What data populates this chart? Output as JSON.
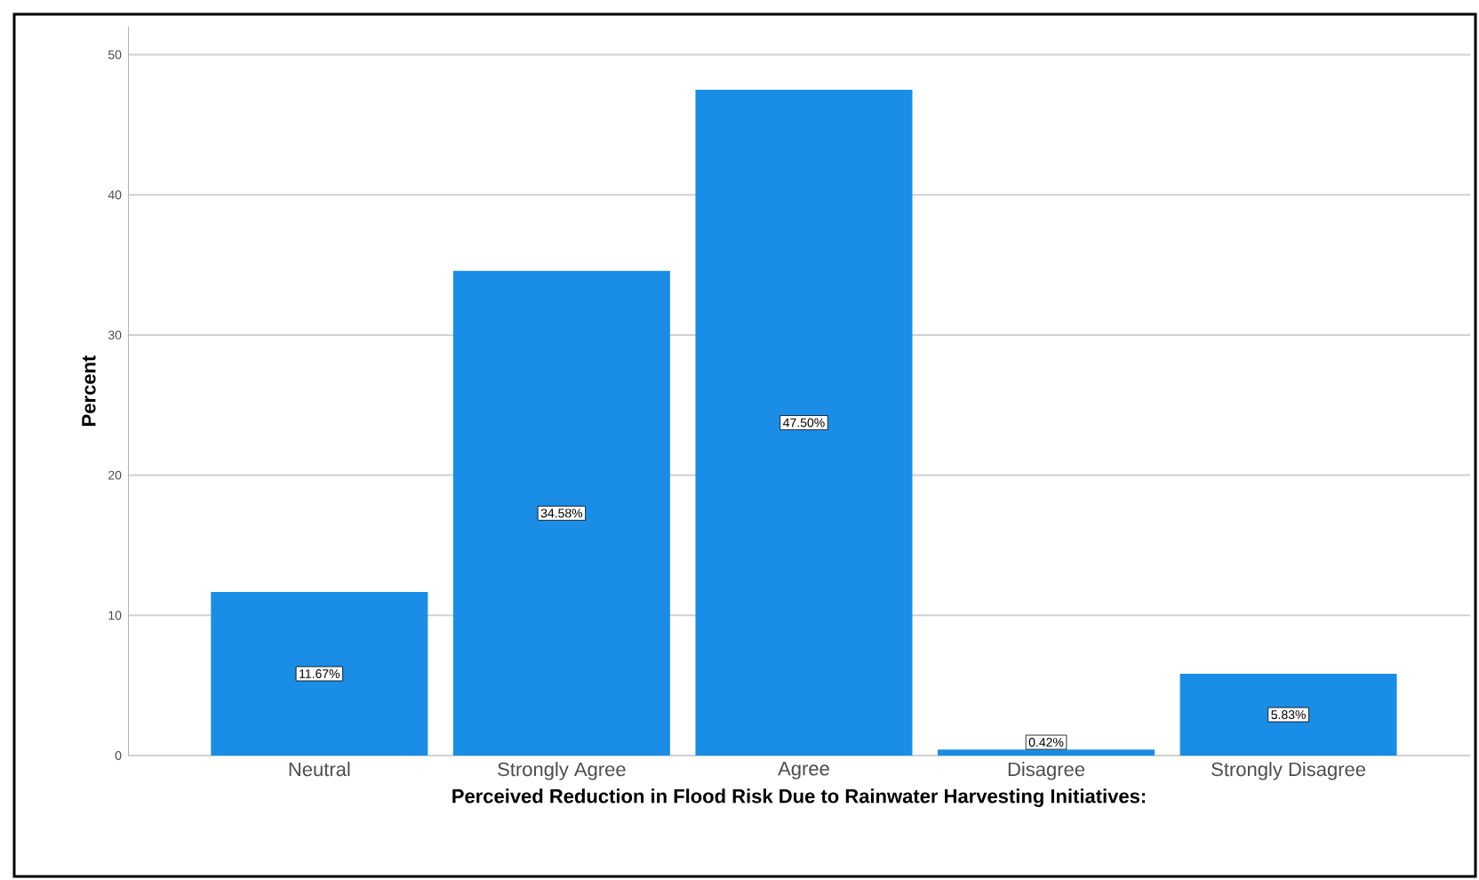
{
  "chart_data": {
    "type": "bar",
    "xlabel": "Perceived Reduction in Flood Risk Due to Rainwater Harvesting Initiatives:",
    "ylabel": "Percent",
    "categories": [
      "Neutral",
      "Strongly Agree",
      "Agree",
      "Disagree",
      "Strongly Disagree"
    ],
    "values": [
      11.67,
      34.58,
      47.5,
      0.42,
      5.83
    ],
    "value_labels": [
      "11.67%",
      "34.58%",
      "47.50%",
      "0.42%",
      "5.83%"
    ],
    "color": "#1a8de6",
    "ylim": [
      0,
      52
    ],
    "yticks": [
      0,
      10,
      20,
      30,
      40,
      50
    ],
    "grid": "y"
  }
}
